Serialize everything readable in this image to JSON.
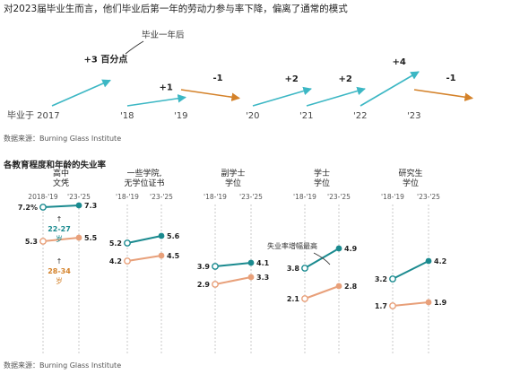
{
  "headline": "对2023届毕业生而言，他们毕业后第一年的劳动力参与率下降，偏离了通常的模式",
  "chart1": {
    "annotation": "毕业一年后",
    "unit_label": "百分点",
    "cohorts": [
      "毕业于 2017",
      "'18",
      "'19",
      "'20",
      "'21",
      "'22",
      "'23"
    ],
    "changes": [
      "+3",
      "+1",
      "-1",
      "+2",
      "+2",
      "+4",
      "-1"
    ],
    "colors": [
      "teal",
      "teal",
      "orange",
      "teal",
      "teal",
      "teal",
      "orange"
    ]
  },
  "source_top": "数据来源：Burning Glass Institute",
  "subtitle": "各教育程度和年龄的失业率",
  "period_labels": [
    "2018-'19",
    "'23-'25"
  ],
  "period_labels_short": [
    "'18-'19",
    "'23-'25"
  ],
  "age_labels": {
    "young": "22-27",
    "older": "28-34",
    "unit": "岁"
  },
  "callout": "失业率增幅最高",
  "source_bottom": "数据来源：Burning Glass Institute",
  "colors": {
    "teal": "#1a8a8f",
    "teal_light": "#3cb7c4",
    "orange": "#e8a07a",
    "orange_dark": "#d4822a"
  },
  "chart_data": [
    {
      "type": "line",
      "title": "对2023届毕业生而言，他们毕业后第一年的劳动力参与率下降，偏离了通常的模式",
      "categories": [
        "2017",
        "2018",
        "2019",
        "2020",
        "2021",
        "2022",
        "2023"
      ],
      "values": [
        3,
        1,
        -1,
        2,
        2,
        4,
        -1
      ],
      "ylabel": "百分点"
    },
    {
      "type": "line",
      "title": "各教育程度和年龄的失业率",
      "x": [
        "2018-'19",
        "'23-'25"
      ],
      "groups": [
        {
          "name": "高中\n文凭",
          "series": [
            {
              "name": "22-27岁",
              "values": [
                7.2,
                7.3
              ]
            },
            {
              "name": "28-34岁",
              "values": [
                5.3,
                5.5
              ]
            }
          ]
        },
        {
          "name": "一些学院,\n无学位证书",
          "series": [
            {
              "name": "22-27岁",
              "values": [
                5.2,
                5.6
              ]
            },
            {
              "name": "28-34岁",
              "values": [
                4.2,
                4.5
              ]
            }
          ]
        },
        {
          "name": "副学士\n学位",
          "series": [
            {
              "name": "22-27岁",
              "values": [
                3.9,
                4.1
              ]
            },
            {
              "name": "28-34岁",
              "values": [
                2.9,
                3.3
              ]
            }
          ]
        },
        {
          "name": "学士\n学位",
          "series": [
            {
              "name": "22-27岁",
              "values": [
                3.8,
                4.9
              ]
            },
            {
              "name": "28-34岁",
              "values": [
                2.1,
                2.8
              ]
            }
          ]
        },
        {
          "name": "研究生\n学位",
          "series": [
            {
              "name": "22-27岁",
              "values": [
                3.2,
                4.2
              ]
            },
            {
              "name": "28-34岁",
              "values": [
                1.7,
                1.9
              ]
            }
          ]
        }
      ]
    }
  ]
}
